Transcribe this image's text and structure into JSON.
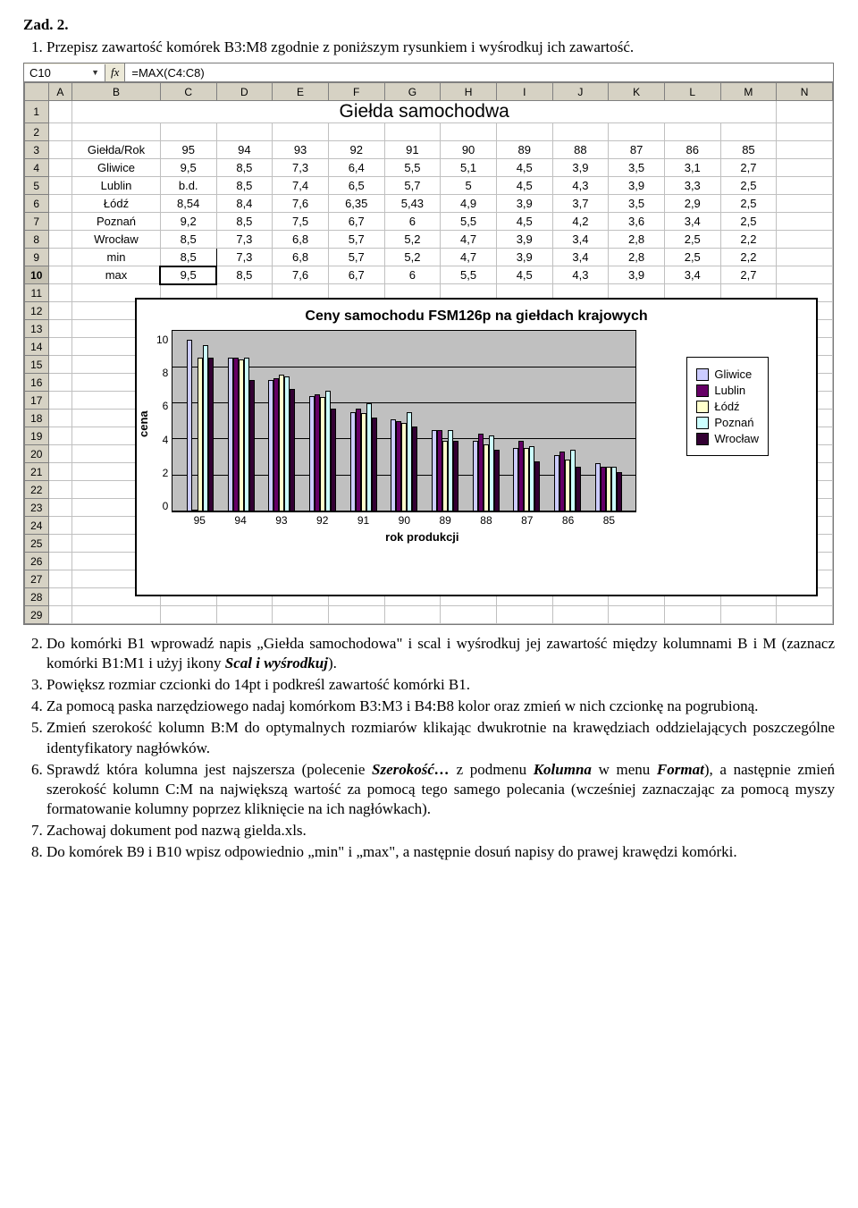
{
  "title": "Zad. 2.",
  "items": [
    {
      "n": "1.",
      "text": "Przepisz zawartość komórek B3:M8 zgodnie z poniższym rysunkiem i wyśrodkuj ich zawartość."
    },
    {
      "n": "2.",
      "text": "Do komórki B1 wprowadź napis „Giełda samochodowa\" i scal i wyśrodkuj jej zawartość między kolumnami B i M (zaznacz komórki B1:M1 i użyj ikony ",
      "em": "Scal i wyśrodkuj",
      "after": ")."
    },
    {
      "n": "3.",
      "text": "Powiększ rozmiar czcionki do 14pt i podkreśl zawartość komórki B1."
    },
    {
      "n": "4.",
      "text": "Za pomocą paska narzędziowego nadaj komórkom B3:M3 i B4:B8 kolor oraz zmień w nich czcionkę na pogrubioną."
    },
    {
      "n": "5.",
      "text": "Zmień szerokość kolumn B:M do optymalnych rozmiarów klikając dwukrotnie na krawędziach oddzielających poszczególne identyfikatory nagłówków."
    },
    {
      "n": "6.",
      "text": "Sprawdź która kolumna jest najszersza (polecenie ",
      "em": "Szerokość…",
      "after": " z podmenu ",
      "em2": "Kolumna",
      "after2": " w menu ",
      "em3": "Format",
      "after3": "), a następnie zmień szerokość kolumn C:M na największą wartość za pomocą tego samego polecania (wcześniej zaznaczając za pomocą myszy formatowanie kolumny poprzez kliknięcie na ich nagłówkach)."
    },
    {
      "n": "7.",
      "text": "Zachowaj dokument pod nazwą gielda.xls."
    },
    {
      "n": "8.",
      "text": "Do komórek B9 i B10 wpisz odpowiednio „min\" i „max\", a następnie dosuń napisy do prawej krawędzi komórki."
    }
  ],
  "sheet": {
    "name_box": "C10",
    "fx": "fx",
    "formula": "=MAX(C4:C8)",
    "col_headers": [
      "A",
      "B",
      "C",
      "D",
      "E",
      "F",
      "G",
      "H",
      "I",
      "J",
      "K",
      "L",
      "M",
      "N"
    ],
    "row_count": 29,
    "merged_title": "Giełda samochodwa",
    "header_row": [
      "Giełda/Rok",
      "95",
      "94",
      "93",
      "92",
      "91",
      "90",
      "89",
      "88",
      "87",
      "86",
      "85"
    ],
    "rows": [
      {
        "label": "Gliwice",
        "vals": [
          "9,5",
          "8,5",
          "7,3",
          "6,4",
          "5,5",
          "5,1",
          "4,5",
          "3,9",
          "3,5",
          "3,1",
          "2,7"
        ]
      },
      {
        "label": "Lublin",
        "vals": [
          "b.d.",
          "8,5",
          "7,4",
          "6,5",
          "5,7",
          "5",
          "4,5",
          "4,3",
          "3,9",
          "3,3",
          "2,5"
        ]
      },
      {
        "label": "Łódź",
        "vals": [
          "8,54",
          "8,4",
          "7,6",
          "6,35",
          "5,43",
          "4,9",
          "3,9",
          "3,7",
          "3,5",
          "2,9",
          "2,5"
        ]
      },
      {
        "label": "Poznań",
        "vals": [
          "9,2",
          "8,5",
          "7,5",
          "6,7",
          "6",
          "5,5",
          "4,5",
          "4,2",
          "3,6",
          "3,4",
          "2,5"
        ]
      },
      {
        "label": "Wrocław",
        "vals": [
          "8,5",
          "7,3",
          "6,8",
          "5,7",
          "5,2",
          "4,7",
          "3,9",
          "3,4",
          "2,8",
          "2,5",
          "2,2"
        ]
      }
    ],
    "min_row": {
      "label": "min",
      "vals": [
        "8,5",
        "7,3",
        "6,8",
        "5,7",
        "5,2",
        "4,7",
        "3,9",
        "3,4",
        "2,8",
        "2,5",
        "2,2"
      ]
    },
    "max_row": {
      "label": "max",
      "vals": [
        "9,5",
        "8,5",
        "7,6",
        "6,7",
        "6",
        "5,5",
        "4,5",
        "4,3",
        "3,9",
        "3,4",
        "2,7"
      ]
    }
  },
  "chart": {
    "title": "Ceny samochodu FSM126p na giełdach krajowych",
    "ylabel": "cena",
    "xlabel": "rok produkcji",
    "ymax": 10,
    "yticks": [
      "10",
      "8",
      "6",
      "4",
      "2",
      "0"
    ],
    "categories": [
      "95",
      "94",
      "93",
      "92",
      "91",
      "90",
      "89",
      "88",
      "87",
      "86",
      "85"
    ],
    "series": [
      {
        "name": "Gliwice",
        "color": "#ccccff",
        "vals": [
          9.5,
          8.5,
          7.3,
          6.4,
          5.5,
          5.1,
          4.5,
          3.9,
          3.5,
          3.1,
          2.7
        ]
      },
      {
        "name": "Lublin",
        "color": "#660066",
        "vals": [
          0,
          8.5,
          7.4,
          6.5,
          5.7,
          5,
          4.5,
          4.3,
          3.9,
          3.3,
          2.5
        ]
      },
      {
        "name": "Łódź",
        "color": "#ffffcc",
        "vals": [
          8.54,
          8.4,
          7.6,
          6.35,
          5.43,
          4.9,
          3.9,
          3.7,
          3.5,
          2.9,
          2.5
        ]
      },
      {
        "name": "Poznań",
        "color": "#ccffff",
        "vals": [
          9.2,
          8.5,
          7.5,
          6.7,
          6,
          5.5,
          4.5,
          4.2,
          3.6,
          3.4,
          2.5
        ]
      },
      {
        "name": "Wrocław",
        "color": "#330033",
        "vals": [
          8.5,
          7.3,
          6.8,
          5.7,
          5.2,
          4.7,
          3.9,
          3.4,
          2.8,
          2.5,
          2.2
        ]
      }
    ]
  }
}
